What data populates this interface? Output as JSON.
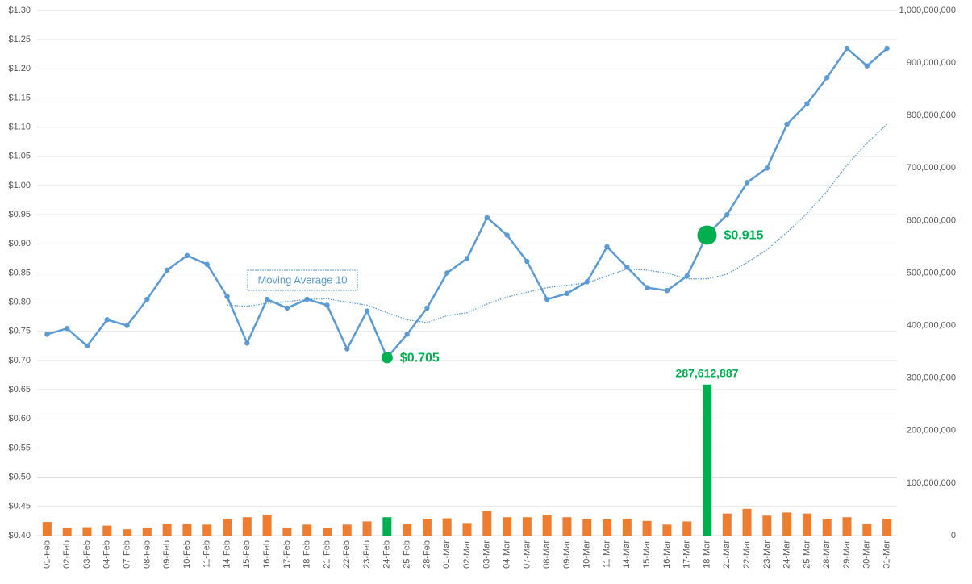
{
  "chart_data": {
    "type": "combo",
    "categories": [
      "01-Feb",
      "02-Feb",
      "03-Feb",
      "04-Feb",
      "07-Feb",
      "08-Feb",
      "09-Feb",
      "10-Feb",
      "11-Feb",
      "14-Feb",
      "15-Feb",
      "16-Feb",
      "17-Feb",
      "18-Feb",
      "21-Feb",
      "22-Feb",
      "23-Feb",
      "24-Feb",
      "25-Feb",
      "28-Feb",
      "01-Mar",
      "02-Mar",
      "03-Mar",
      "04-Mar",
      "07-Mar",
      "08-Mar",
      "09-Mar",
      "10-Mar",
      "11-Mar",
      "14-Mar",
      "15-Mar",
      "16-Mar",
      "17-Mar",
      "18-Mar",
      "21-Mar",
      "22-Mar",
      "23-Mar",
      "24-Mar",
      "25-Mar",
      "28-Mar",
      "29-Mar",
      "30-Mar",
      "31-Mar"
    ],
    "series": [
      {
        "kind": "line",
        "color": "#5b9bd5",
        "values": [
          0.745,
          0.755,
          0.725,
          0.77,
          0.76,
          0.805,
          0.855,
          0.88,
          0.865,
          0.81,
          0.73,
          0.805,
          0.79,
          0.805,
          0.795,
          0.72,
          0.785,
          0.705,
          0.745,
          0.79,
          0.85,
          0.875,
          0.945,
          0.915,
          0.87,
          0.805,
          0.815,
          0.835,
          0.895,
          0.86,
          0.825,
          0.82,
          0.845,
          0.915,
          0.95,
          1.005,
          1.03,
          1.105,
          1.14,
          1.185,
          1.235,
          1.205,
          1.235
        ],
        "value_labels": [
          null,
          null,
          null,
          null,
          null,
          null,
          null,
          null,
          null,
          null,
          null,
          null,
          null,
          null,
          null,
          null,
          null,
          "$0.705",
          null,
          null,
          null,
          null,
          null,
          null,
          null,
          null,
          null,
          null,
          null,
          null,
          null,
          null,
          null,
          "$0.915",
          null,
          null,
          null,
          null,
          null,
          null,
          null,
          null,
          null
        ]
      },
      {
        "kind": "dotted-line",
        "color": "#5b9bd5",
        "values": [
          null,
          null,
          null,
          null,
          null,
          null,
          null,
          null,
          null,
          0.795,
          0.793,
          0.798,
          0.801,
          0.805,
          0.806,
          0.8,
          0.795,
          0.782,
          0.77,
          0.765,
          0.777,
          0.782,
          0.797,
          0.809,
          0.817,
          0.825,
          0.829,
          0.833,
          0.845,
          0.857,
          0.855,
          0.85,
          0.84,
          0.84,
          0.848,
          0.868,
          0.89,
          0.92,
          0.952,
          0.99,
          1.035,
          1.073,
          1.105
        ]
      },
      {
        "kind": "bar",
        "axis": "y2",
        "color": "#ed7d31",
        "values": [
          26000000,
          15000000,
          16000000,
          19000000,
          12000000,
          15000000,
          23000000,
          22000000,
          21000000,
          32000000,
          35000000,
          40000000,
          15000000,
          21000000,
          15000000,
          21000000,
          27000000,
          35000000,
          23000000,
          32000000,
          33000000,
          24000000,
          47000000,
          35000000,
          35000000,
          40000000,
          35000000,
          32000000,
          31000000,
          32000000,
          28000000,
          21000000,
          27000000,
          287612887,
          42000000,
          51000000,
          38000000,
          44000000,
          42000000,
          32000000,
          35000000,
          22000000,
          32000000
        ],
        "value_labels": [
          null,
          null,
          null,
          null,
          null,
          null,
          null,
          null,
          null,
          null,
          null,
          null,
          null,
          null,
          null,
          null,
          null,
          null,
          null,
          null,
          null,
          null,
          null,
          null,
          null,
          null,
          null,
          null,
          null,
          null,
          null,
          null,
          null,
          "287,612,887",
          null,
          null,
          null,
          null,
          null,
          null,
          null,
          null,
          null
        ]
      }
    ],
    "highlight": [
      17,
      33
    ],
    "highlight_color": "#00b050",
    "annotations": [
      {
        "text": "Moving Average 10"
      }
    ],
    "ylim": [
      0.4,
      1.3
    ],
    "yticks": [
      {
        "value": 0.4,
        "label": "$0.40"
      },
      {
        "value": 0.45,
        "label": "$0.45"
      },
      {
        "value": 0.5,
        "label": "$0.50"
      },
      {
        "value": 0.55,
        "label": "$0.55"
      },
      {
        "value": 0.6,
        "label": "$0.60"
      },
      {
        "value": 0.65,
        "label": "$0.65"
      },
      {
        "value": 0.7,
        "label": "$0.70"
      },
      {
        "value": 0.75,
        "label": "$0.75"
      },
      {
        "value": 0.8,
        "label": "$0.80"
      },
      {
        "value": 0.85,
        "label": "$0.85"
      },
      {
        "value": 0.9,
        "label": "$0.90"
      },
      {
        "value": 0.95,
        "label": "$0.95"
      },
      {
        "value": 1.0,
        "label": "$1.00"
      },
      {
        "value": 1.05,
        "label": "$1.05"
      },
      {
        "value": 1.1,
        "label": "$1.10"
      },
      {
        "value": 1.15,
        "label": "$1.15"
      },
      {
        "value": 1.2,
        "label": "$1.20"
      },
      {
        "value": 1.25,
        "label": "$1.25"
      },
      {
        "value": 1.3,
        "label": "$1.30"
      }
    ],
    "y2lim": [
      0,
      1000000000
    ],
    "y2ticks": [
      0,
      {
        "value": 100000000,
        "label": "100,000,000"
      },
      {
        "value": 200000000,
        "label": "200,000,000"
      },
      {
        "value": 300000000,
        "label": "300,000,000"
      },
      {
        "value": 400000000,
        "label": "400,000,000"
      },
      {
        "value": 500000000,
        "label": "500,000,000"
      },
      {
        "value": 600000000,
        "label": "600,000,000"
      },
      {
        "value": 700000000,
        "label": "700,000,000"
      },
      {
        "value": 800000000,
        "label": "800,000,000"
      },
      {
        "value": 900000000,
        "label": "900,000,000"
      },
      {
        "value": 1000000000,
        "label": "1,000,000,000"
      }
    ],
    "grid": true
  }
}
